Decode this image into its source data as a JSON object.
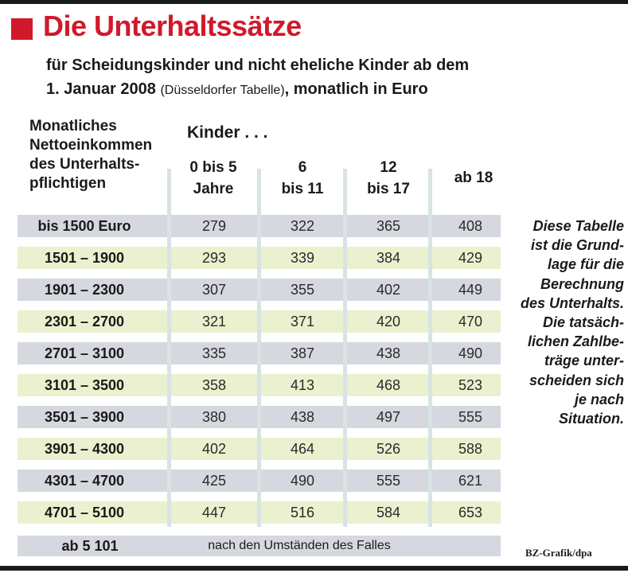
{
  "header": {
    "title": "Die Unterhaltssätze",
    "subtitle_line1": "für Scheidungskinder und nicht eheliche Kinder ab dem",
    "subtitle_line2_a": "1. Januar 2008",
    "subtitle_line2_b": "(Düsseldorfer Tabelle)",
    "subtitle_line2_c": ", monatlich in Euro"
  },
  "table": {
    "row_header": "Monatliches\nNettoeinkommen\ndes Unterhalts-\npflichtigen",
    "group_header": "Kinder . . .",
    "footer_label": "ab 5 101",
    "footer_text": "nach den Umständen des Falles"
  },
  "note": "Diese Tabelle\nist die Grund-\nlage für die\nBerechnung\ndes Unterhalts.\nDie tatsäch-\nlichen Zahlbe-\nträge unter-\nscheiden sich\nje nach\nSituation.",
  "credit": "BZ-Grafik/dpa",
  "colors": {
    "accent": "#d0192b",
    "row_gray": "#d6d8e0",
    "row_green": "#eaf1cf",
    "col_stripe": "#d9e3e3"
  },
  "chart_data": {
    "type": "table",
    "title": "Die Unterhaltssätze",
    "columns": [
      "0 bis 5\nJahre",
      "6\nbis 11",
      "12\nbis 17",
      "ab 18"
    ],
    "rows": [
      "bis 1500 Euro",
      "1501 – 1900",
      "1901 – 2300",
      "2301 – 2700",
      "2701 – 3100",
      "3101 – 3500",
      "3501 – 3900",
      "3901 – 4300",
      "4301 – 4700",
      "4701 – 5100"
    ],
    "values": [
      [
        279,
        322,
        365,
        408
      ],
      [
        293,
        339,
        384,
        429
      ],
      [
        307,
        355,
        402,
        449
      ],
      [
        321,
        371,
        420,
        470
      ],
      [
        335,
        387,
        438,
        490
      ],
      [
        358,
        413,
        468,
        523
      ],
      [
        380,
        438,
        497,
        555
      ],
      [
        402,
        464,
        526,
        588
      ],
      [
        425,
        490,
        555,
        621
      ],
      [
        447,
        516,
        584,
        653
      ]
    ]
  }
}
